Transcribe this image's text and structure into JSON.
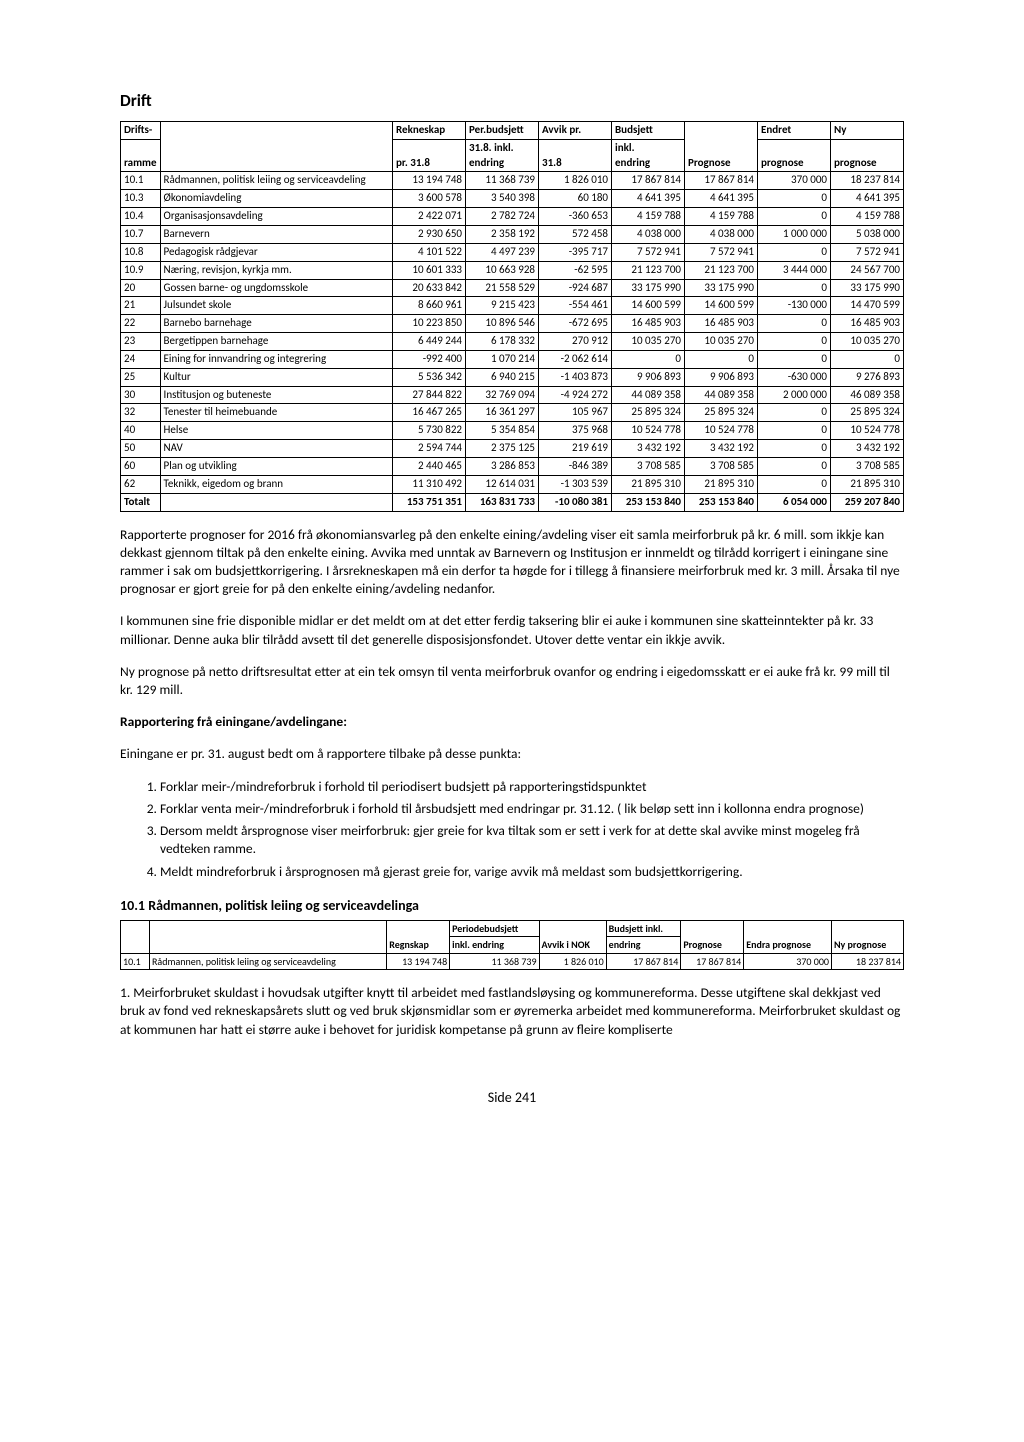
{
  "page_title": "Drift",
  "main_table": {
    "headers": {
      "c1a": "Drifts-",
      "c1b": "ramme",
      "c2": "",
      "c3a": "Rekneskap",
      "c3b": "pr. 31.8",
      "c4a": "Per.budsjett",
      "c4b": "31.8. inkl.",
      "c4c": "endring",
      "c5a": "Avvik pr.",
      "c5b": "31.8",
      "c6a": "Budsjett",
      "c6b": "inkl.",
      "c6c": "endring",
      "c7": "Prognose",
      "c8a": "Endret",
      "c8b": "prognose",
      "c9a": "Ny",
      "c9b": "prognose"
    },
    "rows": [
      {
        "code": "10.1",
        "name": "Rådmannen, politisk leiing og serviceavdeling",
        "rek": "13 194 748",
        "per": "11 368 739",
        "avvik": "1 826 010",
        "bud": "17 867 814",
        "prog": "17 867 814",
        "endret": "370 000",
        "ny": "18 237 814"
      },
      {
        "code": "10.3",
        "name": "Økonomiavdeling",
        "rek": "3 600 578",
        "per": "3 540 398",
        "avvik": "60 180",
        "bud": "4 641 395",
        "prog": "4 641 395",
        "endret": "0",
        "ny": "4 641 395"
      },
      {
        "code": "10.4",
        "name": "Organisasjonsavdeling",
        "rek": "2 422 071",
        "per": "2 782 724",
        "avvik": "-360 653",
        "bud": "4 159 788",
        "prog": "4 159 788",
        "endret": "0",
        "ny": "4 159 788"
      },
      {
        "code": "10.7",
        "name": "Barnevern",
        "rek": "2 930 650",
        "per": "2 358 192",
        "avvik": "572 458",
        "bud": "4 038 000",
        "prog": "4 038 000",
        "endret": "1 000 000",
        "ny": "5 038 000"
      },
      {
        "code": "10.8",
        "name": "Pedagogisk rådgjevar",
        "rek": "4 101 522",
        "per": "4 497 239",
        "avvik": "-395 717",
        "bud": "7 572 941",
        "prog": "7 572 941",
        "endret": "0",
        "ny": "7 572 941"
      },
      {
        "code": "10.9",
        "name": "Næring, revisjon, kyrkja mm.",
        "rek": "10 601 333",
        "per": "10 663 928",
        "avvik": "-62 595",
        "bud": "21 123 700",
        "prog": "21 123 700",
        "endret": "3 444 000",
        "ny": "24 567 700"
      },
      {
        "code": "20",
        "name": "Gossen barne- og ungdomsskole",
        "rek": "20 633 842",
        "per": "21 558 529",
        "avvik": "-924 687",
        "bud": "33 175 990",
        "prog": "33 175 990",
        "endret": "0",
        "ny": "33 175 990"
      },
      {
        "code": "21",
        "name": "Julsundet skole",
        "rek": "8 660 961",
        "per": "9 215 423",
        "avvik": "-554 461",
        "bud": "14 600 599",
        "prog": "14 600 599",
        "endret": "-130 000",
        "ny": "14 470 599"
      },
      {
        "code": "22",
        "name": "Barnebo barnehage",
        "rek": "10 223 850",
        "per": "10 896 546",
        "avvik": "-672 695",
        "bud": "16 485 903",
        "prog": "16 485 903",
        "endret": "0",
        "ny": "16 485 903"
      },
      {
        "code": "23",
        "name": "Bergetippen barnehage",
        "rek": "6 449 244",
        "per": "6 178 332",
        "avvik": "270 912",
        "bud": "10 035 270",
        "prog": "10 035 270",
        "endret": "0",
        "ny": "10 035 270"
      },
      {
        "code": "24",
        "name": "Eining for innvandring og integrering",
        "rek": "-992 400",
        "per": "1 070 214",
        "avvik": "-2 062 614",
        "bud": "0",
        "prog": "0",
        "endret": "0",
        "ny": "0"
      },
      {
        "code": "25",
        "name": "Kultur",
        "rek": "5 536 342",
        "per": "6 940 215",
        "avvik": "-1 403 873",
        "bud": "9 906 893",
        "prog": "9 906 893",
        "endret": "-630 000",
        "ny": "9 276 893"
      },
      {
        "code": "30",
        "name": "Institusjon og buteneste",
        "rek": "27 844 822",
        "per": "32 769 094",
        "avvik": "-4 924 272",
        "bud": "44 089 358",
        "prog": "44 089 358",
        "endret": "2 000 000",
        "ny": "46 089 358"
      },
      {
        "code": "32",
        "name": "Tenester til heimebuande",
        "rek": "16 467 265",
        "per": "16 361 297",
        "avvik": "105 967",
        "bud": "25 895 324",
        "prog": "25 895 324",
        "endret": "0",
        "ny": "25 895 324"
      },
      {
        "code": "40",
        "name": "Helse",
        "rek": "5 730 822",
        "per": "5 354 854",
        "avvik": "375 968",
        "bud": "10 524 778",
        "prog": "10 524 778",
        "endret": "0",
        "ny": "10 524 778"
      },
      {
        "code": "50",
        "name": "NAV",
        "rek": "2 594 744",
        "per": "2 375 125",
        "avvik": "219 619",
        "bud": "3 432 192",
        "prog": "3 432 192",
        "endret": "0",
        "ny": "3 432 192"
      },
      {
        "code": "60",
        "name": "Plan og utvikling",
        "rek": "2 440 465",
        "per": "3 286 853",
        "avvik": "-846 389",
        "bud": "3 708 585",
        "prog": "3 708 585",
        "endret": "0",
        "ny": "3 708 585"
      },
      {
        "code": "62",
        "name": "Teknikk, eigedom og brann",
        "rek": "11 310 492",
        "per": "12 614 031",
        "avvik": "-1 303 539",
        "bud": "21 895 310",
        "prog": "21 895 310",
        "endret": "0",
        "ny": "21 895 310"
      }
    ],
    "total": {
      "code": "Totalt",
      "name": "",
      "rek": "153 751 351",
      "per": "163 831 733",
      "avvik": "-10 080 381",
      "bud": "253 153 840",
      "prog": "253 153 840",
      "endret": "6 054 000",
      "ny": "259 207 840"
    }
  },
  "para1": "Rapporterte prognoser for 2016 frå økonomiansvarleg på den enkelte eining/avdeling viser eit samla meirforbruk på kr. 6 mill. som ikkje kan dekkast gjennom tiltak på den enkelte eining. Avvika med unntak av Barnevern og Institusjon er innmeldt og tilrådd korrigert i einingane sine rammer i sak om budsjettkorrigering. I årsrekneskapen må ein derfor ta høgde for i tillegg å finansiere meirforbruk med kr. 3 mill. Årsaka til nye prognosar er gjort greie for på den enkelte eining/avdeling nedanfor.",
  "para2": "I kommunen sine frie disponible midlar er det meldt om at det etter ferdig taksering blir ei auke i kommunen sine skatteinntekter på kr. 33 millionar. Denne auka blir tilrådd avsett til det generelle disposisjonsfondet. Utover dette ventar ein ikkje avvik.",
  "para3": "Ny prognose på netto driftsresultat etter at ein tek omsyn til venta meirforbruk ovanfor og endring i eigedomsskatt er ei auke frå kr. 99 mill til kr. 129 mill.",
  "report_heading": "Rapportering frå einingane/avdelingane:",
  "report_intro": "Einingane er pr. 31. august bedt om å rapportere tilbake på desse punkta:",
  "list_items": [
    "Forklar meir-/mindreforbruk i forhold til periodisert budsjett på rapporteringstidspunktet",
    "Forklar venta meir-/mindreforbruk i forhold til årsbudsjett med endringar pr. 31.12. ( lik beløp sett inn i kollonna endra prognose)",
    "Dersom meldt årsprognose viser meirforbruk: gjer greie for kva tiltak som er sett i verk for at dette skal avvike minst mogeleg frå vedteken ramme.",
    "Meldt mindreforbruk i årsprognosen må gjerast greie for, varige avvik må meldast som budsjettkorrigering."
  ],
  "sub_heading": "10.1    Rådmannen, politisk leiing og serviceavdelinga",
  "small_table": {
    "headers": {
      "c1": "",
      "c2": "",
      "c3": "Regnskap",
      "c4a": "Periodebudsjett",
      "c4b": "inkl. endring",
      "c5": "Avvik i NOK",
      "c6a": "Budsjett inkl.",
      "c6b": "endring",
      "c7": "Prognose",
      "c8": "Endra prognose",
      "c9": "Ny prognose"
    },
    "row": {
      "code": "10.1",
      "name": "Rådmannen, politisk leiing og serviceavdeling",
      "rek": "13 194 748",
      "per": "11 368 739",
      "avvik": "1 826 010",
      "bud": "17 867 814",
      "prog": "17 867 814",
      "endret": "370 000",
      "ny": "18 237 814"
    }
  },
  "para4": "1. Meirforbruket skuldast i hovudsak utgifter knytt til arbeidet med fastlandsløysing og kommunereforma. Desse utgiftene skal dekkjast ved bruk av fond ved rekneskapsårets slutt og ved bruk skjønsmidlar som er øyremerka arbeidet med kommunereforma. Meirforbruket skuldast og at kommunen har hatt ei større auke i behovet for juridisk kompetanse på grunn av fleire kompliserte",
  "page_number": "Side 241"
}
